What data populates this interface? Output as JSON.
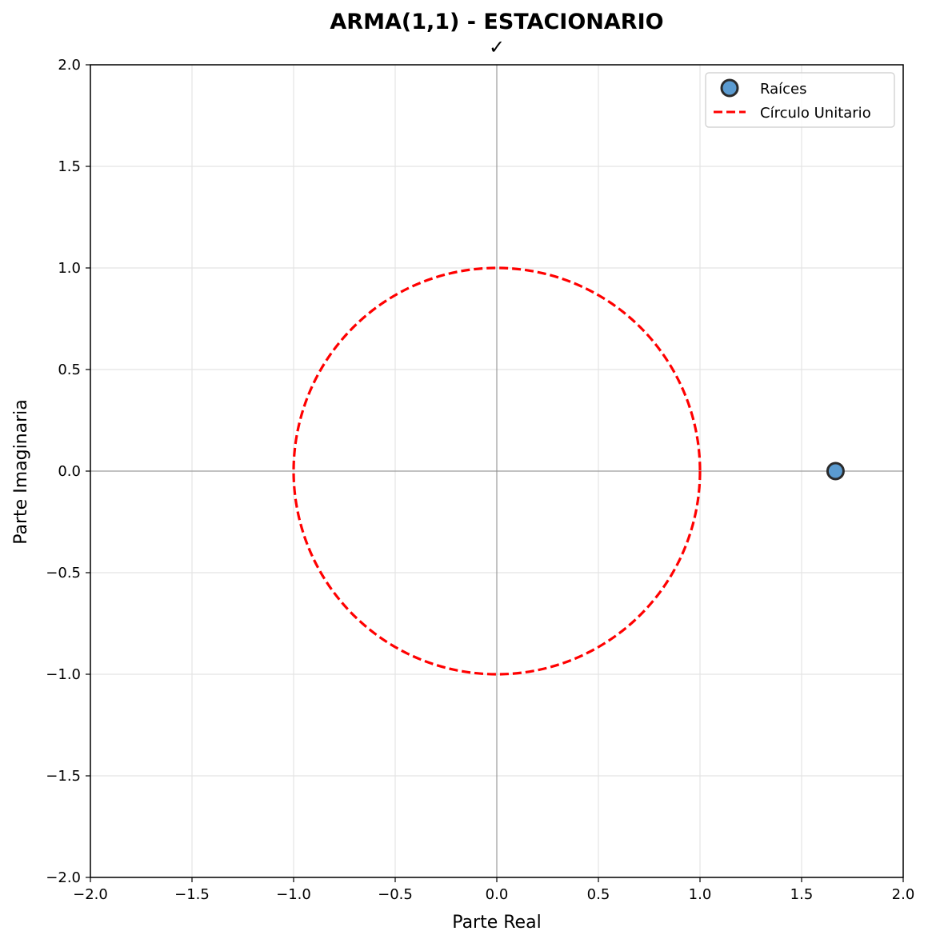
{
  "chart_data": {
    "type": "scatter",
    "title": "ARMA(1,1) - ESTACIONARIO",
    "subtitle": "✓",
    "xlabel": "Parte Real",
    "ylabel": "Parte Imaginaria",
    "xlim": [
      -2.0,
      2.0
    ],
    "ylim": [
      -2.0,
      2.0
    ],
    "xticks": [
      -2.0,
      -1.5,
      -1.0,
      -0.5,
      0.0,
      0.5,
      1.0,
      1.5,
      2.0
    ],
    "yticks": [
      -2.0,
      -1.5,
      -1.0,
      -0.5,
      0.0,
      0.5,
      1.0,
      1.5,
      2.0
    ],
    "xtick_labels": [
      "−2.0",
      "−1.5",
      "−1.0",
      "−0.5",
      "0.0",
      "0.5",
      "1.0",
      "1.5",
      "2.0"
    ],
    "ytick_labels": [
      "−2.0",
      "−1.5",
      "−1.0",
      "−0.5",
      "0.0",
      "0.5",
      "1.0",
      "1.5",
      "2.0"
    ],
    "grid": true,
    "legend_position": "top-right",
    "series": [
      {
        "name": "Raíces",
        "kind": "points",
        "points": [
          {
            "x": 1.667,
            "y": 0.0
          }
        ],
        "color": "#5b9bd0",
        "edge_color": "#2b2b2b"
      },
      {
        "name": "Círculo Unitario",
        "kind": "circle",
        "center": [
          0.0,
          0.0
        ],
        "radius": 1.0,
        "color": "#ff0000",
        "line_style": "dashed"
      }
    ],
    "reference_lines": [
      {
        "axis": "x",
        "value": 0.0,
        "color": "#8c8c8c"
      },
      {
        "axis": "y",
        "value": 0.0,
        "color": "#8c8c8c"
      }
    ]
  }
}
